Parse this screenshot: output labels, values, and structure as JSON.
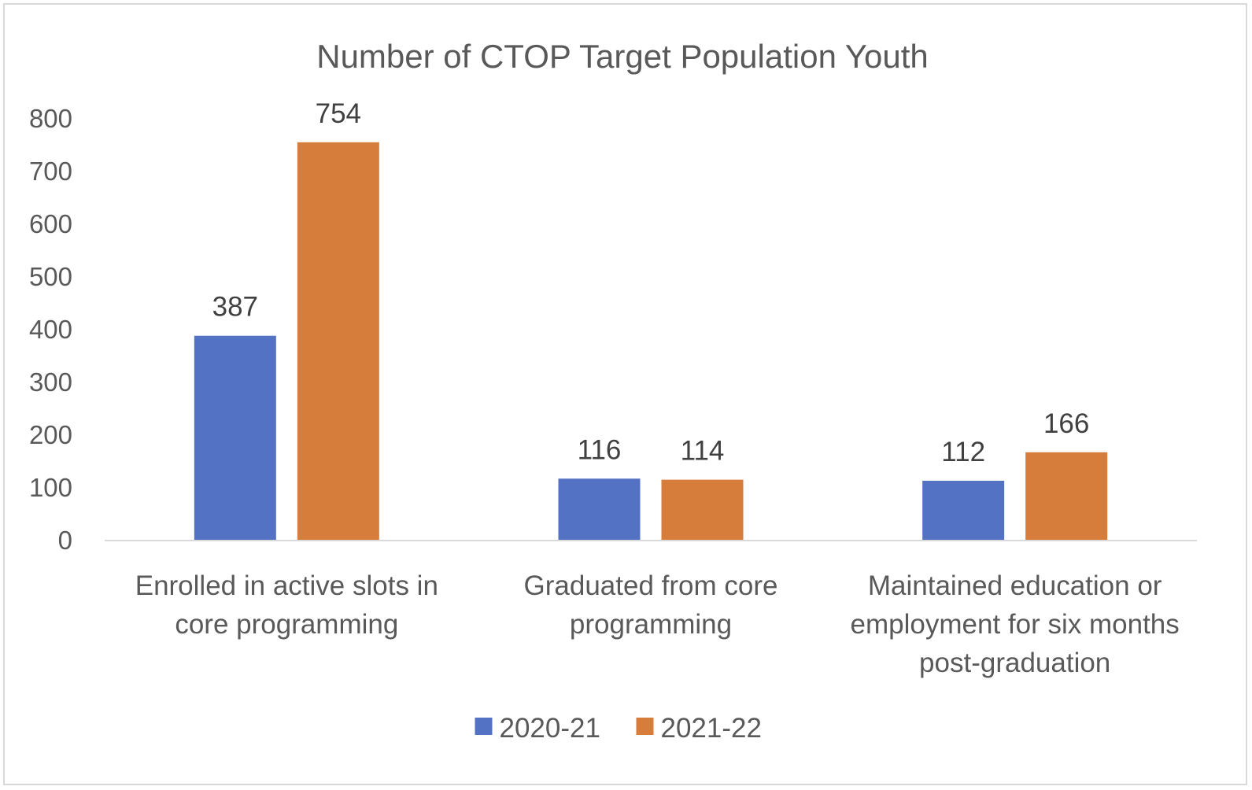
{
  "chart_data": {
    "type": "bar",
    "title": "Number of CTOP Target Population Youth",
    "categories": [
      [
        "Enrolled in active slots in",
        "core programming"
      ],
      [
        "Graduated from core",
        "programming"
      ],
      [
        "Maintained education or",
        "employment for six months",
        "post-graduation"
      ]
    ],
    "series": [
      {
        "name": "2020-21",
        "values": [
          387,
          116,
          112
        ],
        "color": "#5472c4"
      },
      {
        "name": "2021-22",
        "values": [
          754,
          114,
          166
        ],
        "color": "#d67d3b"
      }
    ],
    "ylim": [
      0,
      800
    ],
    "yticks": [
      0,
      100,
      200,
      300,
      400,
      500,
      600,
      700,
      800
    ],
    "data_labels": true,
    "gridlines": false,
    "legend_position": "bottom",
    "axis_color": "#d9d9d9"
  }
}
